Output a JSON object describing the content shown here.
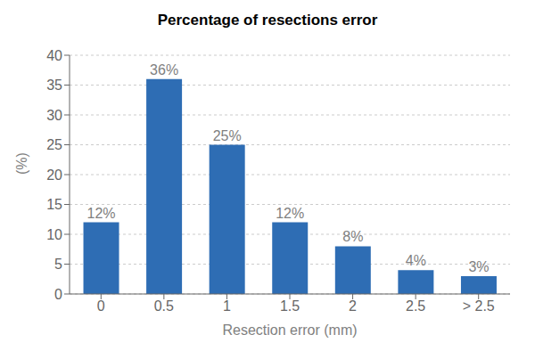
{
  "chart_data": {
    "type": "bar",
    "title": "Percentage of resections error",
    "xlabel": "Resection error (mm)",
    "ylabel": "(%)",
    "categories": [
      "0",
      "0.5",
      "1",
      "1.5",
      "2",
      "2.5",
      "> 2.5"
    ],
    "values": [
      12,
      36,
      25,
      12,
      8,
      4,
      3
    ],
    "value_labels": [
      "12%",
      "36%",
      "25%",
      "12%",
      "8%",
      "4%",
      "3%"
    ],
    "color": "#2e6db4",
    "ylim": [
      0,
      40
    ],
    "yticks": [
      0,
      5,
      10,
      15,
      20,
      25,
      30,
      35,
      40
    ],
    "grid": true,
    "data_labels": true
  }
}
